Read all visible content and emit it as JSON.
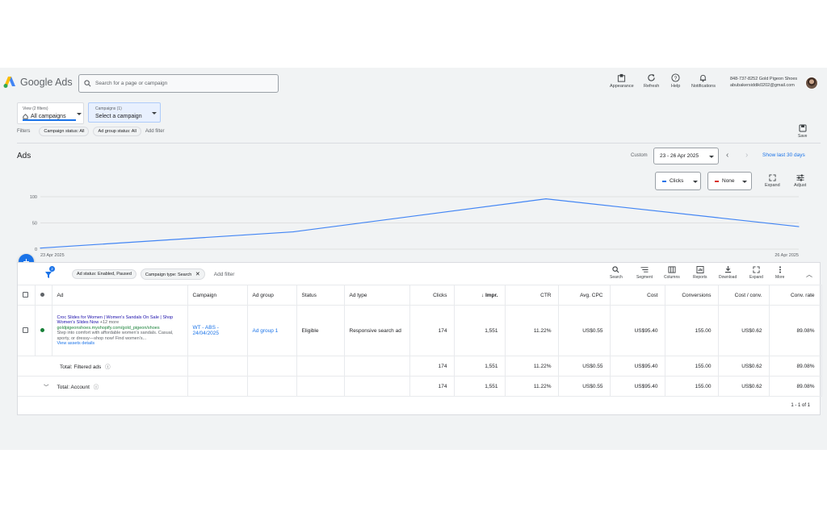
{
  "app": {
    "name": "Google Ads",
    "search_placeholder": "Search for a page or campaign"
  },
  "toolbar": {
    "appearance": "Appearance",
    "refresh": "Refresh",
    "help": "Help",
    "notifications": "Notifications"
  },
  "account": {
    "line1": "848-737-8252 Gold Pigeon Shoes",
    "line2": "abubakersiddik0202@gmail.com"
  },
  "selectors": {
    "view_label": "View (2 filters)",
    "view_value": "All campaigns",
    "campaigns_label": "Campaigns (1)",
    "campaigns_value": "Select a campaign"
  },
  "filters": {
    "label": "Filters",
    "chips": [
      "Campaign status: All",
      "Ad group status: All"
    ],
    "add": "Add filter",
    "save": "Save"
  },
  "page": {
    "title": "Ads",
    "custom": "Custom",
    "date_range": "23 - 26 Apr 2025",
    "show_last": "Show last 30 days"
  },
  "chart_controls": {
    "metric1": "Clicks",
    "metric1_color": "#1a73e8",
    "metric2": "None",
    "metric2_color": "#d93025",
    "expand": "Expand",
    "adjust": "Adjust"
  },
  "chart_data": {
    "type": "line",
    "x": [
      "23 Apr 2025",
      "24 Apr 2025",
      "25 Apr 2025",
      "26 Apr 2025"
    ],
    "series": [
      {
        "values": [
          2,
          33,
          96,
          43
        ],
        "color": "#4285f4"
      }
    ],
    "ylim": [
      0,
      100
    ],
    "yticks": [
      "100",
      "50",
      "0"
    ],
    "xtick_labels": [
      "23 Apr 2025",
      "26 Apr 2025"
    ],
    "grid": true
  },
  "table_toolbar": {
    "filter_count": "2",
    "chips": [
      "Ad status: Enabled, Paused",
      "Campaign type: Search"
    ],
    "add_filter": "Add filter",
    "tools": [
      "Search",
      "Segment",
      "Columns",
      "Reports",
      "Download",
      "Expand",
      "More"
    ]
  },
  "table": {
    "headers": [
      "Ad",
      "Campaign",
      "Ad group",
      "Status",
      "Ad type",
      "Clicks",
      "Impr.",
      "CTR",
      "Avg. CPC",
      "Cost",
      "Conversions",
      "Cost / conv.",
      "Conv. rate"
    ],
    "row": {
      "ad_title": "Croc Slides for Women | Women's Sandals On Sale | Shop Women's Slides Now",
      "ad_more": "+12 more",
      "ad_url": "goldpigeonshoes.myshopify.com/gold_pigeon/shoes",
      "ad_desc": "Step into comfort with affordable women's sandals. Casual, sporty, or dressy—shop now! Find women's...",
      "ad_link": "View assets details",
      "campaign": "WT - ABS - 24/04/2025",
      "ad_group": "Ad group 1",
      "status": "Eligible",
      "ad_type": "Responsive search ad",
      "clicks": "174",
      "impr": "1,551",
      "ctr": "11.22%",
      "avg_cpc": "US$0.55",
      "cost": "US$95.40",
      "conversions": "155.00",
      "cost_conv": "US$0.62",
      "conv_rate": "89.08%"
    },
    "totals": [
      {
        "label": "Total: Filtered ads",
        "clicks": "174",
        "impr": "1,551",
        "ctr": "11.22%",
        "avg_cpc": "US$0.55",
        "cost": "US$95.40",
        "conversions": "155.00",
        "cost_conv": "US$0.62",
        "conv_rate": "89.08%"
      },
      {
        "label": "Total: Account",
        "clicks": "174",
        "impr": "1,551",
        "ctr": "11.22%",
        "avg_cpc": "US$0.55",
        "cost": "US$95.40",
        "conversions": "155.00",
        "cost_conv": "US$0.62",
        "conv_rate": "89.08%"
      }
    ],
    "pagination": "1 - 1 of 1"
  }
}
